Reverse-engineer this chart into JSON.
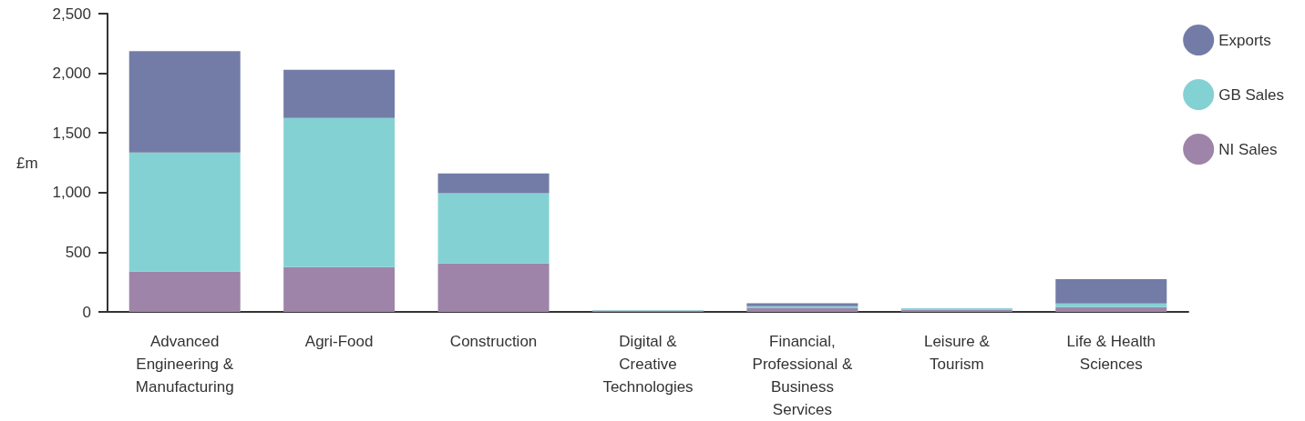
{
  "chart_data": {
    "type": "bar",
    "stacked": true,
    "ylabel": "£m",
    "categories": [
      "Advanced Engineering & Manufacturing",
      "Agri-Food",
      "Construction",
      "Digital & Creative Technologies",
      "Financial, Professional & Business Services",
      "Leisure & Tourism",
      "Life & Health Sciences"
    ],
    "series": [
      {
        "name": "NI Sales",
        "color": "#9d84a8",
        "values": [
          340,
          375,
          405,
          8,
          30,
          20,
          40
        ]
      },
      {
        "name": "GB Sales",
        "color": "#84d1d3",
        "values": [
          995,
          1250,
          590,
          4,
          18,
          10,
          30
        ]
      },
      {
        "name": "Exports",
        "color": "#737ca6",
        "values": [
          850,
          405,
          165,
          2,
          24,
          null,
          205
        ]
      }
    ],
    "ylim": [
      0,
      2500
    ],
    "yticks": [
      0,
      500,
      {
        "value": 1000,
        "label": "1,000"
      },
      {
        "value": 1500,
        "label": "1,500"
      },
      {
        "value": 2000,
        "label": "2,000"
      },
      {
        "value": 2500,
        "label": "2,500"
      }
    ],
    "grid": false,
    "legend": "top right"
  }
}
